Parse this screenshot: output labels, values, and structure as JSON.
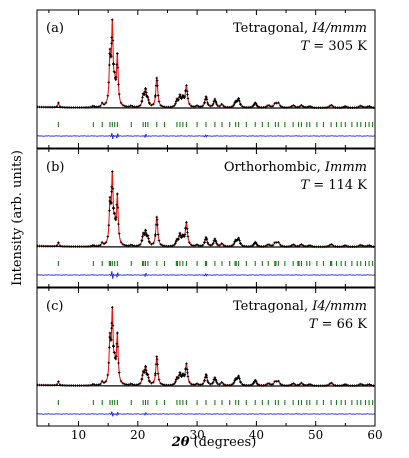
{
  "figure": {
    "ylabel": "Intensity (arb. units)",
    "xlabel_symbol": "2θ",
    "xlabel_unit": " (degrees)",
    "colors": {
      "observed": "#000000",
      "calculated": "#e8190f",
      "background": "#000000",
      "reflections": "#1e7a1e",
      "difference": "#1f2ad8",
      "frame": "#000000"
    }
  },
  "chart_data": [
    {
      "type": "line",
      "panel_label": "(a)",
      "phase_name": "Tetragonal, ",
      "space_group": "I4/mmm",
      "temperature_prefix": "T",
      "temperature_value": " = 305 K",
      "xlim": [
        3,
        60
      ],
      "xticks": [
        10,
        20,
        30,
        40,
        50,
        60
      ],
      "xtick_labels": [],
      "grid": false,
      "peaks": [
        {
          "x": 6.6,
          "y": 0.055
        },
        {
          "x": 12.5,
          "y": 0.022
        },
        {
          "x": 14.0,
          "y": 0.04
        },
        {
          "x": 15.3,
          "y": 0.55
        },
        {
          "x": 15.7,
          "y": 0.92
        },
        {
          "x": 16.1,
          "y": 0.2
        },
        {
          "x": 16.55,
          "y": 0.58
        },
        {
          "x": 18.9,
          "y": 0.02
        },
        {
          "x": 20.9,
          "y": 0.13
        },
        {
          "x": 21.3,
          "y": 0.19
        },
        {
          "x": 21.7,
          "y": 0.08
        },
        {
          "x": 23.2,
          "y": 0.35
        },
        {
          "x": 26.6,
          "y": 0.08
        },
        {
          "x": 27.1,
          "y": 0.12
        },
        {
          "x": 27.6,
          "y": 0.1
        },
        {
          "x": 28.2,
          "y": 0.25
        },
        {
          "x": 30.0,
          "y": 0.02
        },
        {
          "x": 31.5,
          "y": 0.13
        },
        {
          "x": 33.0,
          "y": 0.1
        },
        {
          "x": 34.2,
          "y": 0.04
        },
        {
          "x": 36.5,
          "y": 0.06
        },
        {
          "x": 37.0,
          "y": 0.1
        },
        {
          "x": 39.8,
          "y": 0.06
        },
        {
          "x": 42.0,
          "y": 0.03
        },
        {
          "x": 43.2,
          "y": 0.05
        },
        {
          "x": 43.7,
          "y": 0.05
        },
        {
          "x": 46.2,
          "y": 0.03
        },
        {
          "x": 47.6,
          "y": 0.03
        },
        {
          "x": 49.0,
          "y": 0.02
        },
        {
          "x": 52.6,
          "y": 0.035
        },
        {
          "x": 55.0,
          "y": 0.02
        },
        {
          "x": 57.6,
          "y": 0.025
        },
        {
          "x": 59.0,
          "y": 0.02
        }
      ],
      "reflections": [
        6.6,
        12.5,
        14.0,
        15.3,
        15.7,
        16.1,
        16.55,
        18.9,
        20.9,
        21.3,
        21.7,
        23.2,
        24.5,
        26.6,
        27.1,
        27.6,
        28.2,
        30.0,
        31.5,
        33.0,
        34.2,
        35.5,
        36.5,
        37.0,
        38.3,
        39.8,
        41.0,
        42.0,
        43.2,
        43.7,
        44.8,
        46.2,
        47.1,
        47.6,
        48.5,
        49.0,
        50.2,
        51.3,
        52.6,
        53.5,
        54.3,
        55.0,
        56.1,
        57.0,
        57.6,
        58.4,
        59.0,
        59.6
      ],
      "difference_bumps": [
        {
          "x": 15.7,
          "y": -0.04
        },
        {
          "x": 16.55,
          "y": 0.03
        },
        {
          "x": 21.3,
          "y": 0.02
        },
        {
          "x": 31.5,
          "y": -0.015
        }
      ],
      "scale": 1.0
    },
    {
      "type": "line",
      "panel_label": "(b)",
      "phase_name": "Orthorhombic, ",
      "space_group": "Immm",
      "temperature_prefix": "T",
      "temperature_value": " = 114 K",
      "xlim": [
        3,
        60
      ],
      "xticks": [
        10,
        20,
        30,
        40,
        50,
        60
      ],
      "xtick_labels": [],
      "grid": false,
      "peaks": [
        {
          "x": 6.6,
          "y": 0.05
        },
        {
          "x": 12.5,
          "y": 0.02
        },
        {
          "x": 14.0,
          "y": 0.04
        },
        {
          "x": 15.3,
          "y": 0.5
        },
        {
          "x": 15.7,
          "y": 0.85
        },
        {
          "x": 16.1,
          "y": 0.22
        },
        {
          "x": 16.55,
          "y": 0.62
        },
        {
          "x": 18.9,
          "y": 0.02
        },
        {
          "x": 20.9,
          "y": 0.14
        },
        {
          "x": 21.3,
          "y": 0.17
        },
        {
          "x": 21.7,
          "y": 0.1
        },
        {
          "x": 23.2,
          "y": 0.38
        },
        {
          "x": 26.6,
          "y": 0.07
        },
        {
          "x": 27.1,
          "y": 0.14
        },
        {
          "x": 27.6,
          "y": 0.1
        },
        {
          "x": 28.2,
          "y": 0.3
        },
        {
          "x": 30.0,
          "y": 0.02
        },
        {
          "x": 31.5,
          "y": 0.12
        },
        {
          "x": 33.0,
          "y": 0.1
        },
        {
          "x": 34.2,
          "y": 0.04
        },
        {
          "x": 36.5,
          "y": 0.07
        },
        {
          "x": 37.0,
          "y": 0.1
        },
        {
          "x": 39.8,
          "y": 0.06
        },
        {
          "x": 42.0,
          "y": 0.03
        },
        {
          "x": 43.2,
          "y": 0.05
        },
        {
          "x": 43.7,
          "y": 0.05
        },
        {
          "x": 46.2,
          "y": 0.03
        },
        {
          "x": 47.6,
          "y": 0.03
        },
        {
          "x": 49.0,
          "y": 0.02
        },
        {
          "x": 52.6,
          "y": 0.035
        },
        {
          "x": 55.0,
          "y": 0.02
        },
        {
          "x": 57.6,
          "y": 0.025
        },
        {
          "x": 59.0,
          "y": 0.02
        }
      ],
      "reflections": [
        6.6,
        12.5,
        14.0,
        15.2,
        15.4,
        15.7,
        16.1,
        16.55,
        18.9,
        20.8,
        21.0,
        21.3,
        21.7,
        23.2,
        24.5,
        26.5,
        26.7,
        27.1,
        27.6,
        28.2,
        30.0,
        31.4,
        31.6,
        33.0,
        34.2,
        35.5,
        36.4,
        36.6,
        37.0,
        38.3,
        39.8,
        41.0,
        42.0,
        43.1,
        43.3,
        43.7,
        44.8,
        46.2,
        47.0,
        47.2,
        47.6,
        48.5,
        49.0,
        50.2,
        51.3,
        52.5,
        52.7,
        53.5,
        54.3,
        55.0,
        56.1,
        57.0,
        57.6,
        58.4,
        59.0,
        59.6
      ],
      "difference_bumps": [
        {
          "x": 15.7,
          "y": -0.05
        },
        {
          "x": 16.55,
          "y": 0.03
        },
        {
          "x": 21.3,
          "y": 0.02
        },
        {
          "x": 31.5,
          "y": -0.015
        }
      ],
      "scale": 0.92
    },
    {
      "type": "line",
      "panel_label": "(c)",
      "phase_name": "Tetragonal, ",
      "space_group": "I4/mmm",
      "temperature_prefix": "T",
      "temperature_value": " = 66 K",
      "xlim": [
        3,
        60
      ],
      "xticks": [
        10,
        20,
        30,
        40,
        50,
        60
      ],
      "xtick_labels": [
        "10",
        "20",
        "30",
        "40",
        "50",
        "60"
      ],
      "grid": false,
      "peaks": [
        {
          "x": 6.6,
          "y": 0.05
        },
        {
          "x": 12.5,
          "y": 0.02
        },
        {
          "x": 14.0,
          "y": 0.04
        },
        {
          "x": 15.3,
          "y": 0.52
        },
        {
          "x": 15.7,
          "y": 0.86
        },
        {
          "x": 16.1,
          "y": 0.2
        },
        {
          "x": 16.55,
          "y": 0.6
        },
        {
          "x": 18.9,
          "y": 0.02
        },
        {
          "x": 20.9,
          "y": 0.14
        },
        {
          "x": 21.3,
          "y": 0.2
        },
        {
          "x": 21.7,
          "y": 0.09
        },
        {
          "x": 23.2,
          "y": 0.36
        },
        {
          "x": 26.6,
          "y": 0.08
        },
        {
          "x": 27.1,
          "y": 0.13
        },
        {
          "x": 27.6,
          "y": 0.1
        },
        {
          "x": 28.2,
          "y": 0.26
        },
        {
          "x": 30.0,
          "y": 0.02
        },
        {
          "x": 31.5,
          "y": 0.14
        },
        {
          "x": 33.0,
          "y": 0.1
        },
        {
          "x": 34.2,
          "y": 0.04
        },
        {
          "x": 36.5,
          "y": 0.07
        },
        {
          "x": 37.0,
          "y": 0.11
        },
        {
          "x": 39.8,
          "y": 0.07
        },
        {
          "x": 42.0,
          "y": 0.03
        },
        {
          "x": 43.2,
          "y": 0.05
        },
        {
          "x": 43.7,
          "y": 0.05
        },
        {
          "x": 46.2,
          "y": 0.03
        },
        {
          "x": 47.6,
          "y": 0.035
        },
        {
          "x": 49.0,
          "y": 0.02
        },
        {
          "x": 52.6,
          "y": 0.04
        },
        {
          "x": 55.0,
          "y": 0.02
        },
        {
          "x": 57.6,
          "y": 0.025
        },
        {
          "x": 59.0,
          "y": 0.02
        }
      ],
      "reflections": [
        6.6,
        12.5,
        14.0,
        15.3,
        15.7,
        16.1,
        16.55,
        18.9,
        20.9,
        21.3,
        21.7,
        23.2,
        24.5,
        26.6,
        27.1,
        27.6,
        28.2,
        30.0,
        31.5,
        33.0,
        34.2,
        35.5,
        36.5,
        37.0,
        38.3,
        39.8,
        41.0,
        42.0,
        43.2,
        43.7,
        44.8,
        46.2,
        47.1,
        47.6,
        48.5,
        49.0,
        50.2,
        51.3,
        52.6,
        53.5,
        54.3,
        55.0,
        56.1,
        57.0,
        57.6,
        58.4,
        59.0,
        59.6
      ],
      "difference_bumps": [
        {
          "x": 15.7,
          "y": -0.03
        },
        {
          "x": 16.55,
          "y": 0.02
        },
        {
          "x": 21.3,
          "y": 0.015
        }
      ],
      "scale": 0.95
    }
  ]
}
